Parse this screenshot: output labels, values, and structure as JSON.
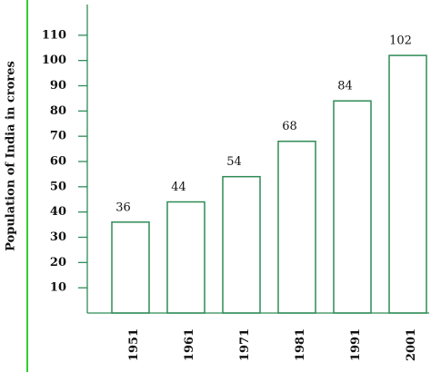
{
  "chart_data": {
    "type": "bar",
    "y_label": "Population of India in crores",
    "categories": [
      "1951",
      "1961",
      "1971",
      "1981",
      "1991",
      "2001"
    ],
    "values": [
      36,
      44,
      54,
      68,
      84,
      102
    ],
    "color": "#2e8b57",
    "ylim": [
      0,
      120
    ],
    "yticks": [
      10,
      20,
      30,
      40,
      50,
      60,
      70,
      80,
      90,
      100,
      110
    ]
  }
}
